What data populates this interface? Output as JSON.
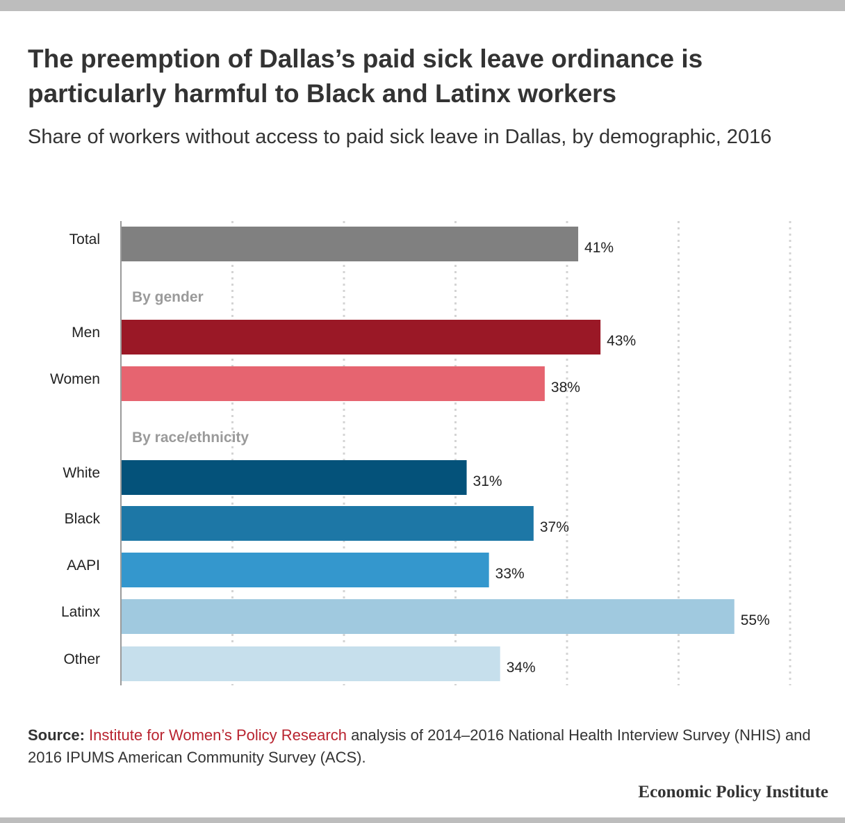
{
  "title": "The preemption of Dallas’s paid sick leave ordinance is particularly harmful to Black and Latinx workers",
  "subtitle": "Share of workers without access to paid sick leave in Dallas, by demographic, 2016",
  "source": {
    "label": "Source:",
    "org": "Institute for Women’s Policy Research",
    "text": " analysis of 2014–2016 National Health Interview Survey (NHIS) and 2016 IPUMS American Community Survey (ACS)."
  },
  "brand": "Economic Policy Institute",
  "chart_data": {
    "type": "bar",
    "orientation": "horizontal",
    "xlim": [
      0,
      60
    ],
    "grid": true,
    "value_suffix": "%",
    "rows": [
      {
        "kind": "bar",
        "label": "Total",
        "value": 41,
        "color": "#808080"
      },
      {
        "kind": "group",
        "label": "By gender"
      },
      {
        "kind": "bar",
        "label": "Men",
        "value": 43,
        "color": "#9a1826"
      },
      {
        "kind": "bar",
        "label": "Women",
        "value": 38,
        "color": "#e66470"
      },
      {
        "kind": "group",
        "label": "By race/ethnicity"
      },
      {
        "kind": "bar",
        "label": "White",
        "value": 31,
        "color": "#04527a"
      },
      {
        "kind": "bar",
        "label": "Black",
        "value": 37,
        "color": "#1d77a6"
      },
      {
        "kind": "bar",
        "label": "AAPI",
        "value": 33,
        "color": "#3497cd"
      },
      {
        "kind": "bar",
        "label": "Latinx",
        "value": 55,
        "color": "#a0c9df"
      },
      {
        "kind": "bar",
        "label": "Other",
        "value": 34,
        "color": "#c6dfec"
      }
    ]
  }
}
